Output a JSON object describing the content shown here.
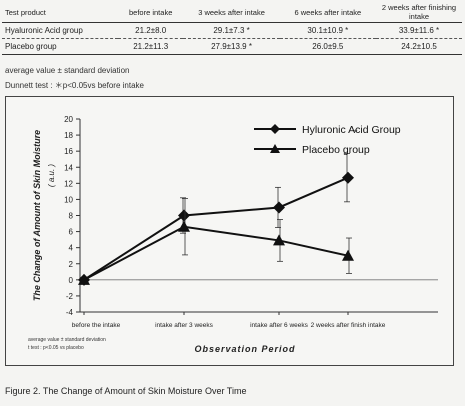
{
  "table": {
    "headers": [
      "Test product",
      "before intake",
      "3 weeks after intake",
      "6 weeks after intake",
      "2 weeks after finishing intake"
    ],
    "rows": [
      {
        "label": "Hyaluronic Acid group",
        "cells": [
          "21.2±8.0",
          "29.1±7.3 *",
          "30.1±10.9 *",
          "33.9±11.6 *"
        ]
      },
      {
        "label": "Placebo group",
        "cells": [
          "21.2±11.3",
          "27.9±13.9 *",
          "26.0±9.5",
          "24.2±10.5"
        ]
      }
    ]
  },
  "notes": {
    "line1": "average value ± standard deviation",
    "line2": "Dunnett test : ＊p<0.05vs before intake"
  },
  "chart_data": {
    "type": "line",
    "categories": [
      "before the intake",
      "intake after 3 weeks",
      "intake after 6 weeks",
      "2 weeks after finish intake"
    ],
    "series": [
      {
        "name": "Hyluronic Acid Group",
        "marker": "diamond",
        "values": [
          0,
          8.0,
          9.0,
          12.7
        ],
        "errors": [
          0,
          2.2,
          2.5,
          3.0
        ],
        "color": "#111111"
      },
      {
        "name": "Placebo group",
        "marker": "triangle",
        "values": [
          0,
          6.6,
          4.9,
          3.0
        ],
        "errors": [
          0,
          3.5,
          2.6,
          2.2
        ],
        "color": "#111111"
      }
    ],
    "significance_marks": [
      {
        "series": 0,
        "index": 3,
        "text": "*"
      }
    ],
    "ylim": [
      -4,
      20
    ],
    "yticks": [
      -4,
      -2,
      0,
      2,
      4,
      6,
      8,
      10,
      12,
      14,
      16,
      18,
      20
    ],
    "ylabel": "The Change of Amount of Skin Moisture",
    "yunit": "( a.u. )",
    "xlabel": "Observation Period",
    "legend_position": "top-right",
    "grid": false,
    "footnotes": [
      "average value ± standard deviation",
      "t test : p<0.05 vs placebo"
    ]
  },
  "caption": "Figure 2. The Change of Amount of Skin Moisture Over Time"
}
